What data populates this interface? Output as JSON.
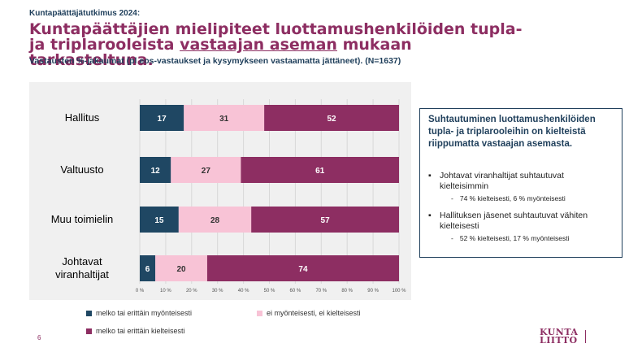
{
  "header": {
    "kicker": "Kuntapäättäjätutkimus 2024:",
    "title_part1": "Kuntapäättäjien mielipiteet luottamushenkilöiden tupla- ja triplarooleista ",
    "title_underlined": "vastaajan aseman",
    "title_part2": " mukaan tarkasteltuna.",
    "subtitle": "Vastausten %-jakaumat (pl eos-vastaukset ja kysymykseen vastaamatta jättäneet). (N=1637)"
  },
  "colors": {
    "positive": "#1f4763",
    "neutral": "#f8c3d6",
    "negative": "#8d2e62",
    "plot_bg": "#f0f0f0",
    "text_dark": "#1f3f5b"
  },
  "chart_data": {
    "type": "bar",
    "orientation": "horizontal",
    "stacked": true,
    "categories": [
      "Hallitus",
      "Valtuusto",
      "Muu toimielin",
      "Johtavat viranhaltijat"
    ],
    "category_lines": [
      [
        "Hallitus"
      ],
      [
        "Valtuusto"
      ],
      [
        "Muu toimielin"
      ],
      [
        "Johtavat",
        "viranhaltijat"
      ]
    ],
    "series": [
      {
        "name": "melko tai erittäin myönteisesti",
        "values": [
          17,
          12,
          15,
          6
        ],
        "color": "#1f4763"
      },
      {
        "name": "ei myönteisesti, ei kielteisesti",
        "values": [
          31,
          27,
          28,
          20
        ],
        "color": "#f8c3d6"
      },
      {
        "name": "melko tai erittäin kielteisesti",
        "values": [
          52,
          61,
          57,
          74
        ],
        "color": "#8d2e62"
      }
    ],
    "xlim": [
      0,
      100
    ],
    "ticks": [
      "0 %",
      "10 %",
      "20 %",
      "30 %",
      "40 %",
      "50 %",
      "60 %",
      "70 %",
      "80 %",
      "90 %",
      "100 %"
    ],
    "grid": true,
    "legend_position": "bottom"
  },
  "callout": {
    "heading": "Suhtautuminen luottamushenkilöiden tupla- ja triplarooleihin on kielteistä riippumatta vastaajan asemasta.",
    "points": [
      {
        "text": "Johtavat viranhaltijat suhtautuvat kielteisimmin",
        "detail": "74 % kielteisesti, 6 % myönteisesti"
      },
      {
        "text": "Hallituksen jäsenet suhtautuvat vähiten kielteisesti",
        "detail": "52 % kielteisesti, 17 % myönteisesti"
      }
    ]
  },
  "footer": {
    "page_number": "6",
    "logo_line1": "KUNTA",
    "logo_line2": "LIITTO"
  }
}
